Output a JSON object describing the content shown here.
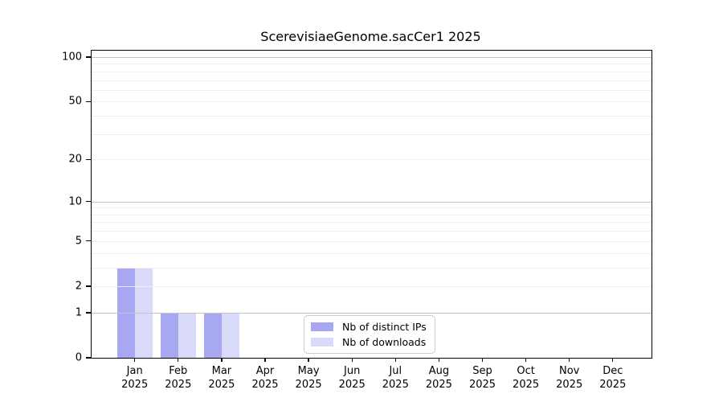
{
  "chart_data": {
    "type": "bar",
    "title": "ScerevisiaeGenome.sacCer1 2025",
    "categories": [
      "Jan",
      "Feb",
      "Mar",
      "Apr",
      "May",
      "Jun",
      "Jul",
      "Aug",
      "Sep",
      "Oct",
      "Nov",
      "Dec"
    ],
    "x_tick_year_label": "2025",
    "series": [
      {
        "name": "Nb of distinct IPs",
        "color": "#a8a8f2",
        "values": [
          3,
          1,
          1,
          0,
          0,
          0,
          0,
          0,
          0,
          0,
          0,
          0
        ]
      },
      {
        "name": "Nb of downloads",
        "color": "#d9d9f9",
        "values": [
          3,
          1,
          1,
          0,
          0,
          0,
          0,
          0,
          0,
          0,
          0,
          0
        ]
      }
    ],
    "xlabel": "",
    "ylabel": "",
    "y_scale": "log10(1+x)",
    "y_ticks": [
      0,
      1,
      2,
      5,
      10,
      20,
      50,
      100
    ],
    "ylim": [
      0,
      110
    ],
    "grid": {
      "major_values": [
        1,
        10,
        100
      ],
      "minor_values": [
        2,
        3,
        4,
        5,
        6,
        7,
        8,
        9,
        20,
        30,
        40,
        50,
        60,
        70,
        80,
        90
      ],
      "major_color": "#c3c3c3",
      "minor_color": "#efefef"
    },
    "legend_position": "bottom-center",
    "axis_color": "#000000",
    "background_color": "#ffffff"
  }
}
